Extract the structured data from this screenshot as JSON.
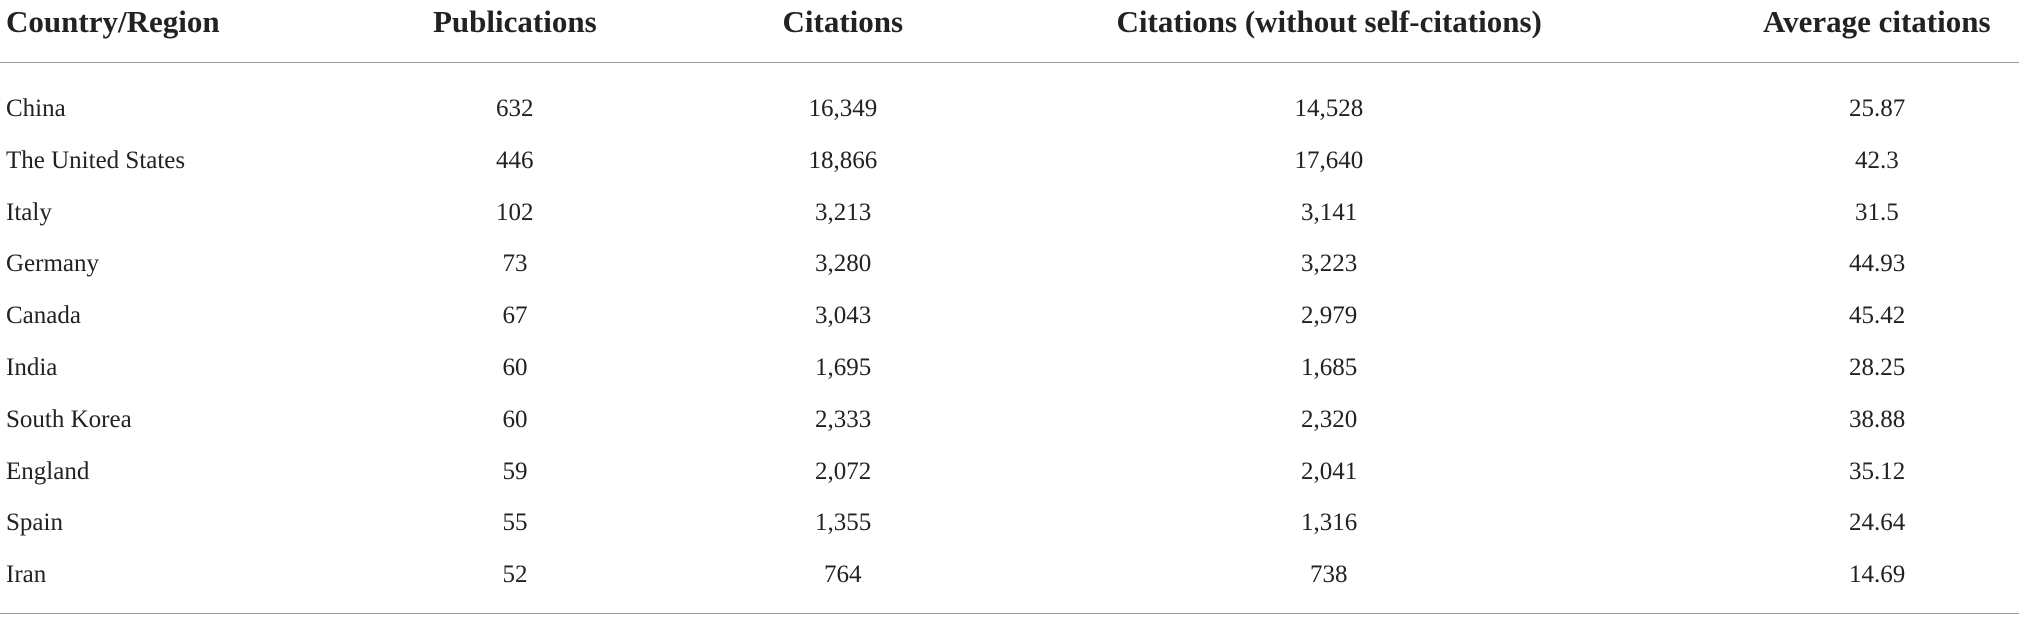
{
  "table": {
    "header": [
      "Country/Region",
      "Publications",
      "Citations",
      "Citations (without self-citations)",
      "Average citations"
    ],
    "rows": [
      [
        "China",
        "632",
        "16,349",
        "14,528",
        "25.87"
      ],
      [
        "The United States",
        "446",
        "18,866",
        "17,640",
        "42.3"
      ],
      [
        "Italy",
        "102",
        "3,213",
        "3,141",
        "31.5"
      ],
      [
        "Germany",
        "73",
        "3,280",
        "3,223",
        "44.93"
      ],
      [
        "Canada",
        "67",
        "3,043",
        "2,979",
        "45.42"
      ],
      [
        "India",
        "60",
        "1,695",
        "1,685",
        "28.25"
      ],
      [
        "South Korea",
        "60",
        "2,333",
        "2,320",
        "38.88"
      ],
      [
        "England",
        "59",
        "2,072",
        "2,041",
        "35.12"
      ],
      [
        "Spain",
        "55",
        "1,355",
        "1,316",
        "24.64"
      ],
      [
        "Iran",
        "52",
        "764",
        "738",
        "14.69"
      ]
    ]
  }
}
